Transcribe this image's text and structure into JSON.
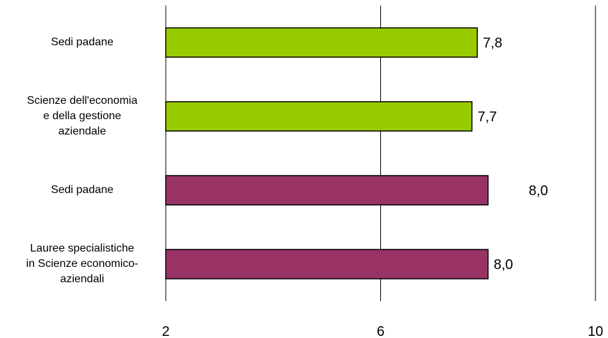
{
  "chart_data": {
    "type": "bar",
    "orientation": "horizontal",
    "categories": [
      [
        "Sedi padane"
      ],
      [
        "Scienze dell'economia",
        "e della gestione",
        "aziendale"
      ],
      [
        "Sedi padane"
      ],
      [
        "Lauree specialistiche",
        "in Scienze economico-",
        "aziendali"
      ]
    ],
    "values": [
      7.8,
      7.7,
      8.0,
      8.0
    ],
    "value_labels": [
      "7,8",
      "7,7",
      "8,0",
      "8,0"
    ],
    "bar_colors": [
      "#99cc00",
      "#99cc00",
      "#993366",
      "#993366"
    ],
    "bar_outline": "#000000",
    "xlim": [
      2,
      10
    ],
    "xticks": [
      2,
      6,
      10
    ],
    "xtick_labels": [
      "2",
      "6",
      "10"
    ],
    "title": "",
    "xlabel": "",
    "ylabel": "",
    "grid": "vertical",
    "legend": "none"
  }
}
